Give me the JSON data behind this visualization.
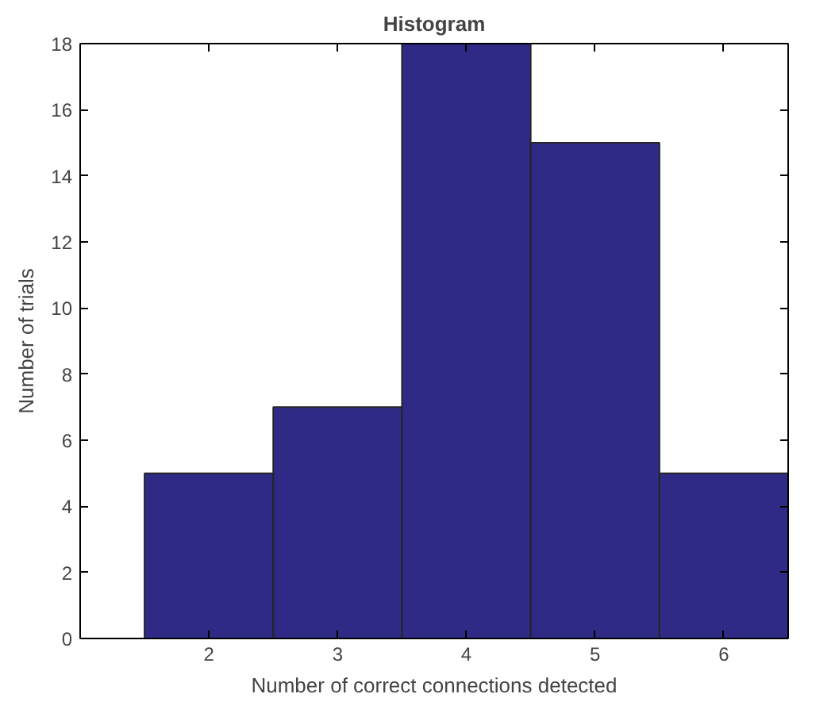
{
  "chart_data": {
    "type": "histogram",
    "title": "Histogram",
    "xlabel": "Number of correct connections detected",
    "ylabel": "Number of trials",
    "bins": [
      1.5,
      2.5,
      3.5,
      4.5,
      5.5,
      6.5
    ],
    "values": [
      5,
      7,
      18,
      15,
      5
    ],
    "color": "#2e2a86",
    "xlim": [
      1,
      6.5
    ],
    "xticks": [
      2,
      3,
      4,
      5,
      6
    ],
    "ylim": [
      0,
      18
    ],
    "yticks": [
      0,
      2,
      4,
      6,
      8,
      10,
      12,
      14,
      16,
      18
    ],
    "grid": false
  }
}
